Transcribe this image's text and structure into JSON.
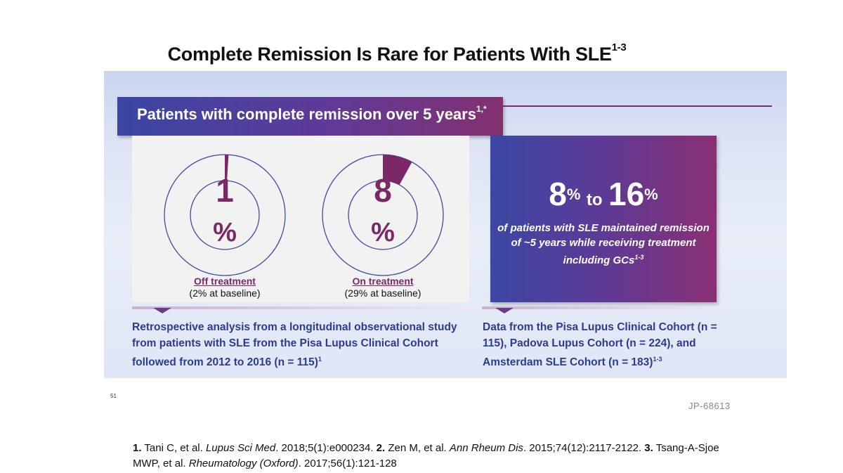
{
  "slide": {
    "title": "Complete Remission Is Rare for Patients With SLE",
    "title_sup": "1-3"
  },
  "banner": {
    "text": "Patients with complete remission over 5 years",
    "sup": "1,*"
  },
  "donuts": [
    {
      "value": "1",
      "unit": "%",
      "fraction": 0.01,
      "label": "Off treatment",
      "sublabel": "(2% at baseline)"
    },
    {
      "value": "8",
      "unit": "%",
      "fraction": 0.08,
      "label": "On treatment",
      "sublabel": "(29% at baseline)"
    }
  ],
  "stat": {
    "low": "8",
    "low_unit": "%",
    "to": "to",
    "high": "16",
    "high_unit": "%",
    "description": "of patients with SLE maintained remission of ~5 years  while receiving treatment including GCs",
    "description_sup": "1-3"
  },
  "left_desc": {
    "text": "Retrospective analysis from a longitudinal observational study from patients with SLE from the Pisa Lupus Clinical Cohort followed from 2012 to 2016 (n = 115)",
    "sup": "1"
  },
  "right_desc": {
    "text": "Data from the Pisa Lupus Clinical Cohort (n = 115), Padova Lupus Cohort (n = 224), and Amsterdam SLE Cohort (n = 183)",
    "sup": "1-3"
  },
  "footer": {
    "page_number": "51",
    "job_code": "JP-68613"
  },
  "references": [
    {
      "num": "1.",
      "authors": "Tani C, et al. ",
      "journal": "Lupus Sci Med",
      "details": ". 2018;5(1):e000234. "
    },
    {
      "num": "2.",
      "authors": "Zen M, et al. ",
      "journal": "Ann Rheum Dis",
      "details": ". 2015;74(12):2117-2122. "
    },
    {
      "num": "3.",
      "authors": "Tsang-A-Sjoe MWP, et al. ",
      "journal": "Rheumatology (Oxford)",
      "details": ". 2017;56(1):121-128"
    }
  ],
  "colors": {
    "accent_purple": "#7b2866",
    "accent_blue": "#2e3b92"
  }
}
